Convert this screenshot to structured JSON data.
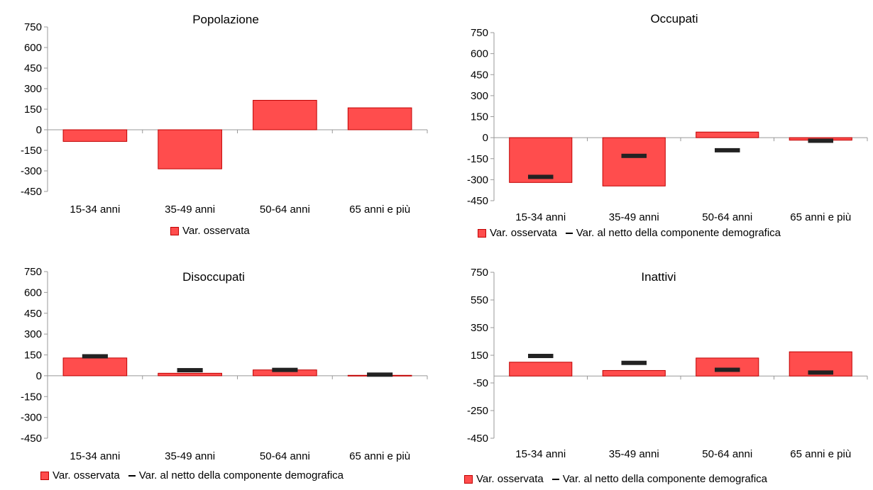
{
  "colors": {
    "bar_fill": "#ff4d4d",
    "bar_stroke": "#c00000",
    "marker": "#222222",
    "axis": "#999999"
  },
  "legend": {
    "observed": "Var. osservata",
    "net": "Var. al netto della componente demografica"
  },
  "chart_data": [
    {
      "type": "bar",
      "title": "Popolazione",
      "categories": [
        "15-34 anni",
        "35-49 anni",
        "50-64 anni",
        "65 anni e più"
      ],
      "ylim": [
        -450,
        750
      ],
      "yticks": [
        750,
        600,
        450,
        300,
        150,
        0,
        -150,
        -300,
        -450
      ],
      "series": [
        {
          "name": "Var. osservata",
          "values": [
            -85,
            -285,
            215,
            160
          ]
        }
      ]
    },
    {
      "type": "bar",
      "title": "Occupati",
      "categories": [
        "15-34 anni",
        "35-49 anni",
        "50-64 anni",
        "65 anni e più"
      ],
      "ylim": [
        -450,
        750
      ],
      "yticks": [
        750,
        600,
        450,
        300,
        150,
        0,
        -150,
        -300,
        -450
      ],
      "series": [
        {
          "name": "Var. osservata",
          "values": [
            -320,
            -345,
            40,
            -18
          ]
        },
        {
          "name": "Var. al netto della componente demografica",
          "values": [
            -280,
            -130,
            -90,
            -22
          ]
        }
      ]
    },
    {
      "type": "bar",
      "title": "Disoccupati",
      "categories": [
        "15-34 anni",
        "35-49 anni",
        "50-64 anni",
        "65 anni e più"
      ],
      "ylim": [
        -450,
        750
      ],
      "yticks": [
        750,
        600,
        450,
        300,
        150,
        0,
        -150,
        -300,
        -450
      ],
      "series": [
        {
          "name": "Var. osservata",
          "values": [
            128,
            18,
            42,
            3
          ]
        },
        {
          "name": "Var. al netto della componente demografica",
          "values": [
            140,
            40,
            42,
            8
          ]
        }
      ]
    },
    {
      "type": "bar",
      "title": "Inattivi",
      "categories": [
        "15-34 anni",
        "35-49 anni",
        "50-64 anni",
        "65 anni e più"
      ],
      "ylim": [
        -450,
        750
      ],
      "yticks": [
        750,
        550,
        350,
        150,
        -50,
        -250,
        -450
      ],
      "series": [
        {
          "name": "Var. osservata",
          "values": [
            100,
            40,
            130,
            175
          ]
        },
        {
          "name": "Var. al netto della componente demografica",
          "values": [
            145,
            95,
            45,
            25
          ]
        }
      ]
    }
  ]
}
